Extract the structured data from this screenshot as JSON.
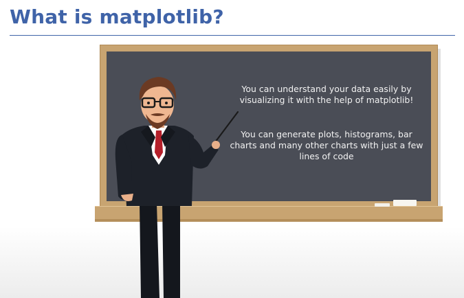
{
  "slide": {
    "title": "What is matplotlib?"
  },
  "board": {
    "text_1": "You can understand your data easily by visualizing it with the help of matplotlib!",
    "text_2": "You can generate plots, histograms, bar charts and many other charts with just a few lines of code"
  },
  "colors": {
    "title": "#3f63a8",
    "board": "#4a4d56",
    "frame": "#c8a471"
  }
}
